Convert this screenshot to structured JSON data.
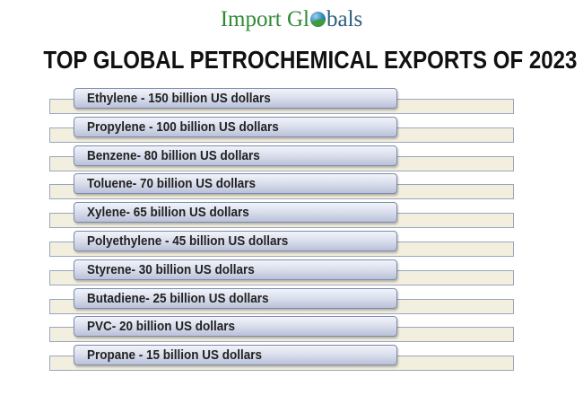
{
  "logo": {
    "part1": "Import Gl",
    "part2": "bals",
    "globe_icon": "globe-icon",
    "colors": {
      "green": "#2e8a34",
      "blue": "#2c5d7c"
    }
  },
  "title": "TOP GLOBAL PETROCHEMICAL EXPORTS OF 2023",
  "items": [
    {
      "label": "Ethylene -  150 billion US dollars"
    },
    {
      "label": "Propylene - 100 billion US dollars"
    },
    {
      "label": "Benzene- 80 billion US dollars"
    },
    {
      "label": "Toluene- 70 billion US dollars"
    },
    {
      "label": "Xylene- 65 billion US dollars"
    },
    {
      "label": "Polyethylene - 45 billion US dollars"
    },
    {
      "label": "Styrene- 30 billion US dollars"
    },
    {
      "label": "Butadiene-  25 billion US dollars"
    },
    {
      "label": "PVC- 20 billion US dollars"
    },
    {
      "label": "Propane - 15 billion US dollars"
    }
  ]
}
